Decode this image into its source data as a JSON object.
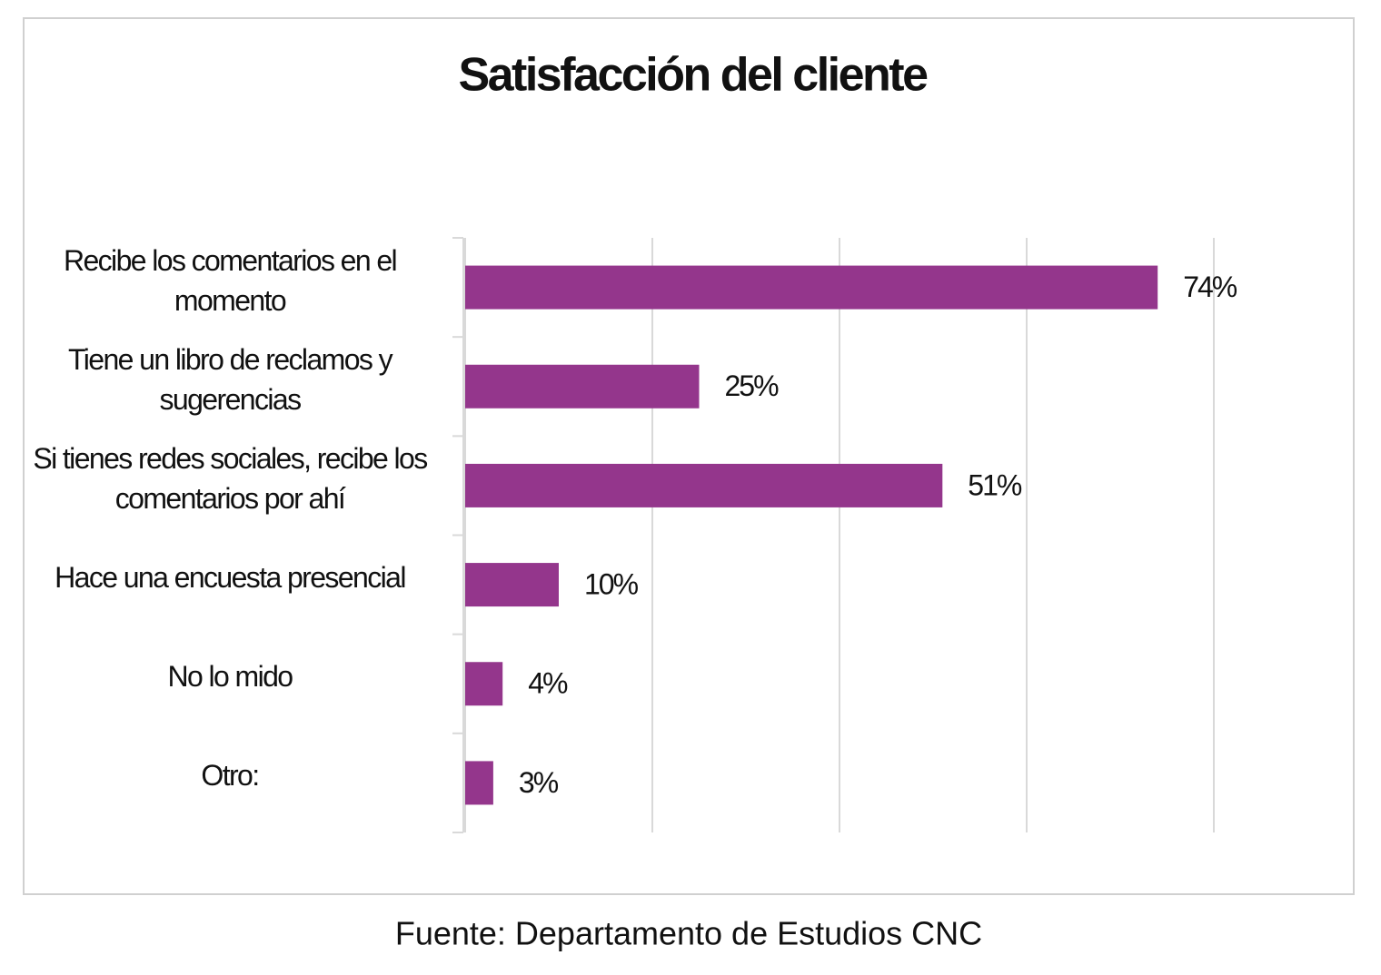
{
  "chart_data": {
    "type": "bar",
    "orientation": "horizontal",
    "title": "Satisfacción del cliente",
    "categories": [
      "Recibe los comentarios en el momento",
      "Tiene un libro de reclamos y sugerencias",
      "Si tienes redes sociales, recibe los comentarios por ahí",
      "Hace una encuesta presencial",
      "No lo mido",
      "Otro:"
    ],
    "values": [
      74,
      25,
      51,
      10,
      4,
      3
    ],
    "value_labels": [
      "74%",
      "25%",
      "51%",
      "10%",
      "4%",
      "3%"
    ],
    "color": "#94368c",
    "xlim": [
      0,
      80
    ],
    "xticks": [
      0,
      20,
      40,
      60,
      80
    ],
    "grid": true,
    "source": "Fuente: Departamento de Estudios CNC"
  }
}
